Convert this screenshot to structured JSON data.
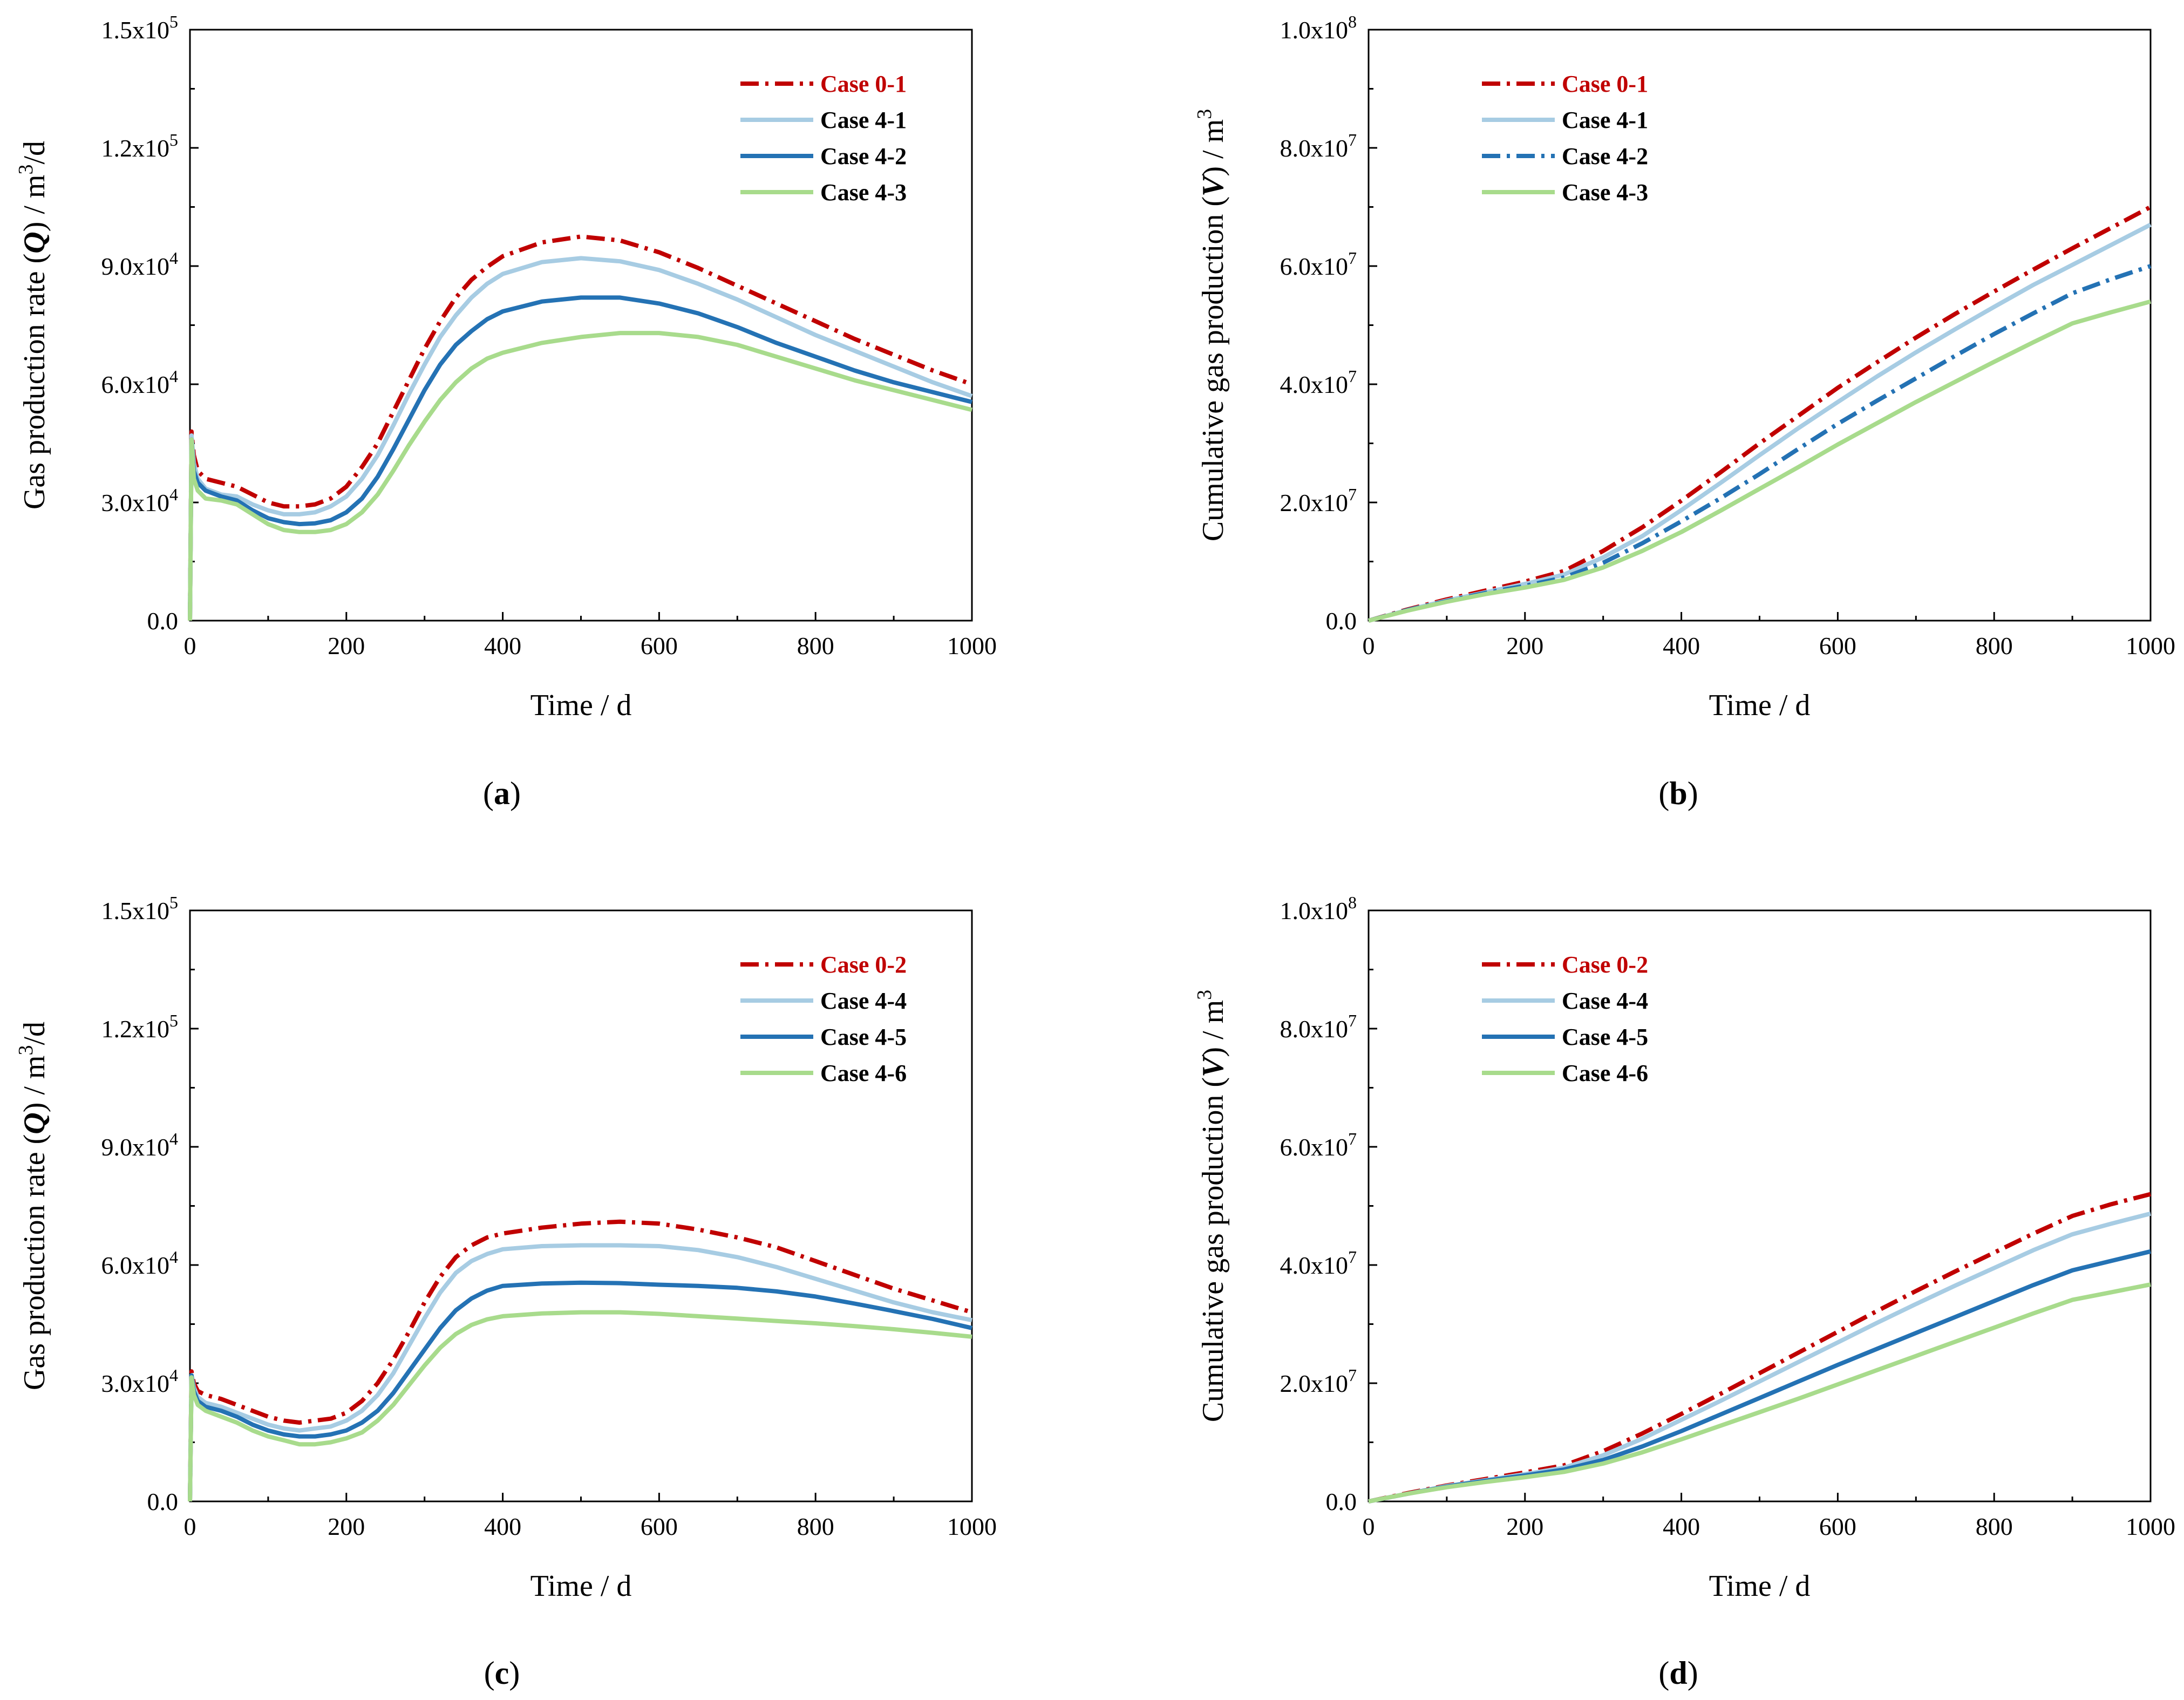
{
  "chart_data": [
    {
      "id": "a",
      "type": "line",
      "subtitle": "(a)",
      "xlabel": "Time / d",
      "ylabel": {
        "pre": "Gas production rate (",
        "sym": "Q",
        "post": ") / m",
        "sup": "3",
        "tail": "/d"
      },
      "xlim": [
        0,
        1000
      ],
      "ylim": [
        0,
        150000
      ],
      "xticks": [
        0,
        200,
        400,
        600,
        800,
        1000
      ],
      "xtick_labels": [
        "0",
        "200",
        "400",
        "600",
        "800",
        "1000"
      ],
      "yticks": [
        0,
        30000,
        60000,
        90000,
        120000,
        150000
      ],
      "ytick_labels": [
        {
          "base": "0.0",
          "exp": ""
        },
        {
          "base": "3.0x10",
          "exp": "4"
        },
        {
          "base": "6.0x10",
          "exp": "4"
        },
        {
          "base": "9.0x10",
          "exp": "4"
        },
        {
          "base": "1.2x10",
          "exp": "5"
        },
        {
          "base": "1.5x10",
          "exp": "5"
        }
      ],
      "legend": "top-right",
      "x": [
        0,
        2,
        5,
        10,
        20,
        40,
        60,
        80,
        100,
        120,
        140,
        160,
        180,
        200,
        220,
        240,
        260,
        280,
        300,
        320,
        340,
        360,
        380,
        400,
        450,
        500,
        550,
        600,
        650,
        700,
        750,
        800,
        850,
        900,
        950,
        1000
      ],
      "series": [
        {
          "name": "Case 0-1",
          "color": "#c00000",
          "dash": "dashdot",
          "label_color": "#c00000",
          "values": [
            0,
            48000,
            42000,
            38000,
            36000,
            35000,
            34000,
            32000,
            30000,
            29000,
            29000,
            29500,
            31000,
            34000,
            39000,
            45000,
            53000,
            61000,
            69000,
            76000,
            82000,
            86500,
            89800,
            92500,
            96000,
            97500,
            96500,
            93500,
            89500,
            85000,
            80500,
            76000,
            71500,
            67500,
            63500,
            60000
          ]
        },
        {
          "name": "Case 4-1",
          "color": "#a7cce3",
          "dash": "solid",
          "label_color": "#000000",
          "values": [
            0,
            47000,
            40000,
            36000,
            33500,
            32000,
            31500,
            29500,
            28000,
            27000,
            27000,
            27500,
            29000,
            31500,
            36000,
            42000,
            49500,
            57500,
            65000,
            72000,
            77500,
            82000,
            85500,
            88000,
            91000,
            92000,
            91200,
            89000,
            85500,
            81500,
            77000,
            72500,
            68500,
            64500,
            60500,
            57000
          ]
        },
        {
          "name": "Case 4-2",
          "color": "#2472b4",
          "dash": "solid",
          "label_color": "#000000",
          "values": [
            0,
            46000,
            38000,
            35000,
            33000,
            31500,
            30500,
            28000,
            26000,
            25000,
            24500,
            24700,
            25500,
            27500,
            31000,
            36500,
            43500,
            51000,
            58500,
            65000,
            70000,
            73500,
            76500,
            78500,
            81000,
            82000,
            82000,
            80500,
            78000,
            74500,
            70500,
            67000,
            63500,
            60500,
            58000,
            55500
          ]
        },
        {
          "name": "Case 4-3",
          "color": "#a8db8c",
          "dash": "solid",
          "label_color": "#000000",
          "values": [
            0,
            46000,
            36000,
            33000,
            31000,
            30500,
            29500,
            27000,
            24500,
            23000,
            22500,
            22500,
            23000,
            24500,
            27500,
            32000,
            38000,
            44500,
            50500,
            56000,
            60500,
            64000,
            66500,
            68000,
            70500,
            72000,
            73000,
            73000,
            72000,
            70000,
            67000,
            64000,
            61000,
            58500,
            56000,
            53500
          ]
        }
      ]
    },
    {
      "id": "b",
      "type": "line",
      "subtitle": "(b)",
      "xlabel": "Time / d",
      "ylabel": {
        "pre": "Cumulative gas production (",
        "sym": "V",
        "post": ") / m",
        "sup": "3",
        "tail": ""
      },
      "xlim": [
        0,
        1000
      ],
      "ylim": [
        0,
        100000000
      ],
      "xticks": [
        0,
        200,
        400,
        600,
        800,
        1000
      ],
      "xtick_labels": [
        "0",
        "200",
        "400",
        "600",
        "800",
        "1000"
      ],
      "yticks": [
        0,
        20000000,
        40000000,
        60000000,
        80000000,
        100000000
      ],
      "ytick_labels": [
        {
          "base": "0.0",
          "exp": ""
        },
        {
          "base": "2.0x10",
          "exp": "7"
        },
        {
          "base": "4.0x10",
          "exp": "7"
        },
        {
          "base": "6.0x10",
          "exp": "7"
        },
        {
          "base": "8.0x10",
          "exp": "7"
        },
        {
          "base": "1.0x10",
          "exp": "8"
        }
      ],
      "legend": "top-left",
      "x": [
        0,
        50,
        100,
        150,
        200,
        250,
        300,
        350,
        400,
        450,
        500,
        550,
        600,
        650,
        700,
        750,
        800,
        850,
        900,
        950,
        1000
      ],
      "series": [
        {
          "name": "Case 0-1",
          "color": "#c00000",
          "dash": "dashdot",
          "label_color": "#c00000",
          "values": [
            0,
            1900000,
            3600000,
            5100000,
            6600000,
            8400000,
            11800000,
            15800000,
            20300000,
            25100000,
            30000000,
            34700000,
            39400000,
            43700000,
            47900000,
            51900000,
            55700000,
            59400000,
            63000000,
            66500000,
            70000000
          ]
        },
        {
          "name": "Case 4-1",
          "color": "#a7cce3",
          "dash": "solid",
          "label_color": "#000000",
          "values": [
            0,
            1800000,
            3400000,
            4800000,
            6200000,
            7800000,
            10700000,
            14300000,
            18700000,
            23300000,
            28000000,
            32600000,
            37000000,
            41300000,
            45400000,
            49300000,
            53100000,
            56800000,
            60200000,
            63600000,
            67000000
          ]
        },
        {
          "name": "Case 4-2",
          "color": "#2472b4",
          "dash": "dashdot",
          "label_color": "#000000",
          "values": [
            0,
            1800000,
            3300000,
            4700000,
            5900000,
            7300000,
            9800000,
            13100000,
            16800000,
            20700000,
            24800000,
            29100000,
            33300000,
            37200000,
            41000000,
            44800000,
            48500000,
            52000000,
            55400000,
            57800000,
            60000000
          ]
        },
        {
          "name": "Case 4-3",
          "color": "#a8db8c",
          "dash": "solid",
          "label_color": "#000000",
          "values": [
            0,
            1700000,
            3200000,
            4500000,
            5600000,
            6900000,
            9000000,
            11800000,
            15000000,
            18600000,
            22300000,
            26000000,
            29800000,
            33400000,
            37000000,
            40400000,
            43800000,
            47100000,
            50300000,
            52200000,
            54000000
          ]
        }
      ]
    },
    {
      "id": "c",
      "type": "line",
      "subtitle": "(c)",
      "xlabel": "Time / d",
      "ylabel": {
        "pre": "Gas production rate (",
        "sym": "Q",
        "post": ") / m",
        "sup": "3",
        "tail": "/d"
      },
      "xlim": [
        0,
        1000
      ],
      "ylim": [
        0,
        150000
      ],
      "xticks": [
        0,
        200,
        400,
        600,
        800,
        1000
      ],
      "xtick_labels": [
        "0",
        "200",
        "400",
        "600",
        "800",
        "1000"
      ],
      "yticks": [
        0,
        30000,
        60000,
        90000,
        120000,
        150000
      ],
      "ytick_labels": [
        {
          "base": "0.0",
          "exp": ""
        },
        {
          "base": "3.0x10",
          "exp": "4"
        },
        {
          "base": "6.0x10",
          "exp": "4"
        },
        {
          "base": "9.0x10",
          "exp": "4"
        },
        {
          "base": "1.2x10",
          "exp": "5"
        },
        {
          "base": "1.5x10",
          "exp": "5"
        }
      ],
      "legend": "top-right",
      "x": [
        0,
        2,
        5,
        10,
        20,
        40,
        60,
        80,
        100,
        120,
        140,
        160,
        180,
        200,
        220,
        240,
        260,
        280,
        300,
        320,
        340,
        360,
        380,
        400,
        450,
        500,
        550,
        600,
        650,
        700,
        750,
        800,
        850,
        900,
        950,
        1000
      ],
      "series": [
        {
          "name": "Case 0-2",
          "color": "#c00000",
          "dash": "dashdot",
          "label_color": "#c00000",
          "values": [
            0,
            33000,
            30000,
            28000,
            27000,
            26000,
            24500,
            23000,
            21500,
            20500,
            20000,
            20500,
            21000,
            22500,
            25500,
            30000,
            36000,
            43000,
            50500,
            57000,
            62000,
            65000,
            67000,
            68000,
            69500,
            70500,
            71000,
            70500,
            69000,
            67000,
            64500,
            61000,
            57500,
            54000,
            51000,
            48000
          ]
        },
        {
          "name": "Case 4-4",
          "color": "#a7cce3",
          "dash": "solid",
          "label_color": "#000000",
          "values": [
            0,
            32000,
            29000,
            26500,
            25000,
            24000,
            22500,
            21000,
            19500,
            18500,
            18000,
            18500,
            19000,
            20500,
            23000,
            27000,
            32500,
            39500,
            46500,
            53000,
            58000,
            61000,
            62800,
            64000,
            64800,
            65000,
            65000,
            64800,
            63800,
            62000,
            59500,
            56500,
            53500,
            50500,
            48000,
            46000
          ]
        },
        {
          "name": "Case 4-5",
          "color": "#2472b4",
          "dash": "solid",
          "label_color": "#000000",
          "values": [
            0,
            32000,
            28000,
            25500,
            24000,
            23000,
            21500,
            19500,
            18000,
            17000,
            16500,
            16500,
            17000,
            18000,
            20000,
            23000,
            27500,
            33000,
            38500,
            44000,
            48500,
            51500,
            53500,
            54700,
            55300,
            55500,
            55400,
            55000,
            54700,
            54200,
            53300,
            52000,
            50200,
            48300,
            46300,
            44000
          ]
        },
        {
          "name": "Case 4-6",
          "color": "#a8db8c",
          "dash": "solid",
          "label_color": "#000000",
          "values": [
            0,
            31500,
            27000,
            24500,
            23000,
            21500,
            20000,
            18000,
            16500,
            15500,
            14500,
            14500,
            15000,
            16000,
            17500,
            20500,
            24500,
            29500,
            34500,
            39000,
            42500,
            44800,
            46200,
            47000,
            47700,
            48000,
            48000,
            47600,
            47000,
            46400,
            45800,
            45200,
            44500,
            43700,
            42800,
            41800
          ]
        }
      ]
    },
    {
      "id": "d",
      "type": "line",
      "subtitle": "(d)",
      "xlabel": "Time / d",
      "ylabel": {
        "pre": "Cumulative gas production (",
        "sym": "V",
        "post": ") / m",
        "sup": "3",
        "tail": ""
      },
      "xlim": [
        0,
        1000
      ],
      "ylim": [
        0,
        100000000
      ],
      "xticks": [
        0,
        200,
        400,
        600,
        800,
        1000
      ],
      "xtick_labels": [
        "0",
        "200",
        "400",
        "600",
        "800",
        "1000"
      ],
      "yticks": [
        0,
        20000000,
        40000000,
        60000000,
        80000000,
        100000000
      ],
      "ytick_labels": [
        {
          "base": "0.0",
          "exp": ""
        },
        {
          "base": "2.0x10",
          "exp": "7"
        },
        {
          "base": "4.0x10",
          "exp": "7"
        },
        {
          "base": "6.0x10",
          "exp": "7"
        },
        {
          "base": "8.0x10",
          "exp": "7"
        },
        {
          "base": "1.0x10",
          "exp": "8"
        }
      ],
      "legend": "top-left",
      "x": [
        0,
        50,
        100,
        150,
        200,
        250,
        300,
        350,
        400,
        450,
        500,
        550,
        600,
        650,
        700,
        750,
        800,
        850,
        900,
        950,
        1000
      ],
      "series": [
        {
          "name": "Case 0-2",
          "color": "#c00000",
          "dash": "dashdot",
          "label_color": "#c00000",
          "values": [
            0,
            1400000,
            2700000,
            3800000,
            4900000,
            6100000,
            8500000,
            11500000,
            14800000,
            18200000,
            21700000,
            25200000,
            28700000,
            32200000,
            35600000,
            38900000,
            42100000,
            45300000,
            48300000,
            50300000,
            52000000
          ]
        },
        {
          "name": "Case 4-4",
          "color": "#a7cce3",
          "dash": "solid",
          "label_color": "#000000",
          "values": [
            0,
            1300000,
            2600000,
            3600000,
            4600000,
            5700000,
            7800000,
            10600000,
            13800000,
            17000000,
            20300000,
            23600000,
            26900000,
            30200000,
            33400000,
            36500000,
            39500000,
            42500000,
            45200000,
            47000000,
            48700000
          ]
        },
        {
          "name": "Case 4-5",
          "color": "#2472b4",
          "dash": "solid",
          "label_color": "#000000",
          "values": [
            0,
            1300000,
            2500000,
            3500000,
            4400000,
            5400000,
            7000000,
            9300000,
            11900000,
            14700000,
            17500000,
            20300000,
            23100000,
            25800000,
            28500000,
            31200000,
            33900000,
            36600000,
            39100000,
            40700000,
            42300000
          ]
        },
        {
          "name": "Case 4-6",
          "color": "#a8db8c",
          "dash": "solid",
          "label_color": "#000000",
          "values": [
            0,
            1300000,
            2400000,
            3300000,
            4100000,
            5000000,
            6400000,
            8300000,
            10500000,
            12800000,
            15100000,
            17400000,
            19800000,
            22200000,
            24600000,
            27000000,
            29400000,
            31800000,
            34100000,
            35400000,
            36700000
          ]
        }
      ]
    }
  ]
}
